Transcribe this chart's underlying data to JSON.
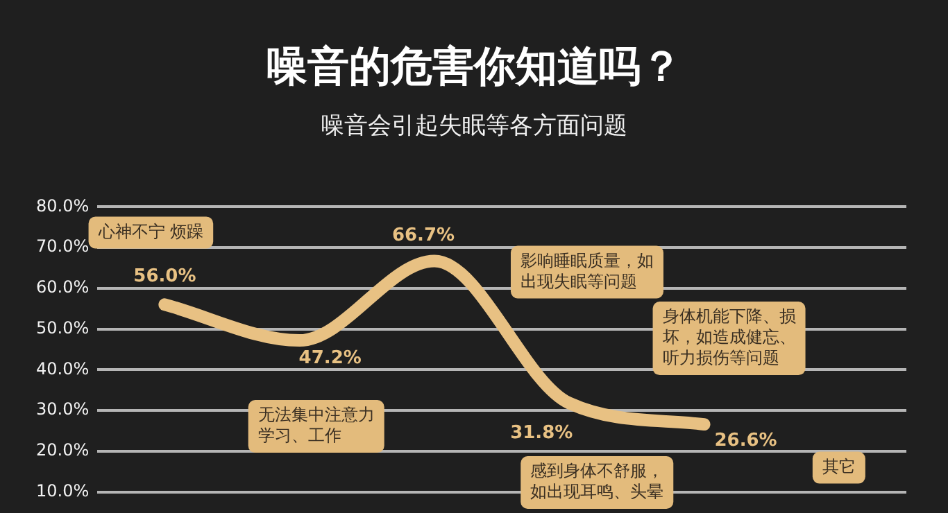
{
  "chart_data": {
    "type": "line",
    "title": "噪音的危害你知道吗？",
    "subtitle": "噪音会引起失眠等各方面问题",
    "categories": [
      null,
      null,
      null,
      null,
      null,
      null
    ],
    "series": [
      {
        "color": "#e8c183",
        "values": [
          56.0,
          47.2,
          66.7,
          31.8,
          26.6,
          null
        ],
        "value_labels": [
          "56.0%",
          "47.2%",
          "66.7%",
          "31.8%",
          "26.6%",
          null
        ]
      }
    ],
    "annotations": [
      "心神不宁 烦躁",
      "无法集中注意力学习、工作",
      "影响睡眠质量，如出现失眠等问题",
      "感到身体不舒服，如出现耳鸣、头晕",
      "身体机能下降、损坏，如造成健忘、听力损伤等问题",
      "其它"
    ],
    "ylim": [
      10,
      80
    ],
    "yticks": [
      {
        "value": 10,
        "label": "10.0%"
      },
      {
        "value": 20,
        "label": "20.0%"
      },
      {
        "value": 30,
        "label": "30.0%"
      },
      {
        "value": 40,
        "label": "40.0%"
      },
      {
        "value": 50,
        "label": "50.0%"
      },
      {
        "value": 60,
        "label": "60.0%"
      },
      {
        "value": 70,
        "label": "70.0%"
      },
      {
        "value": 80,
        "label": "80.0%"
      }
    ],
    "grid": "y",
    "legend": false,
    "marker": "none",
    "line_style": "solid",
    "tick_labels": "y"
  }
}
